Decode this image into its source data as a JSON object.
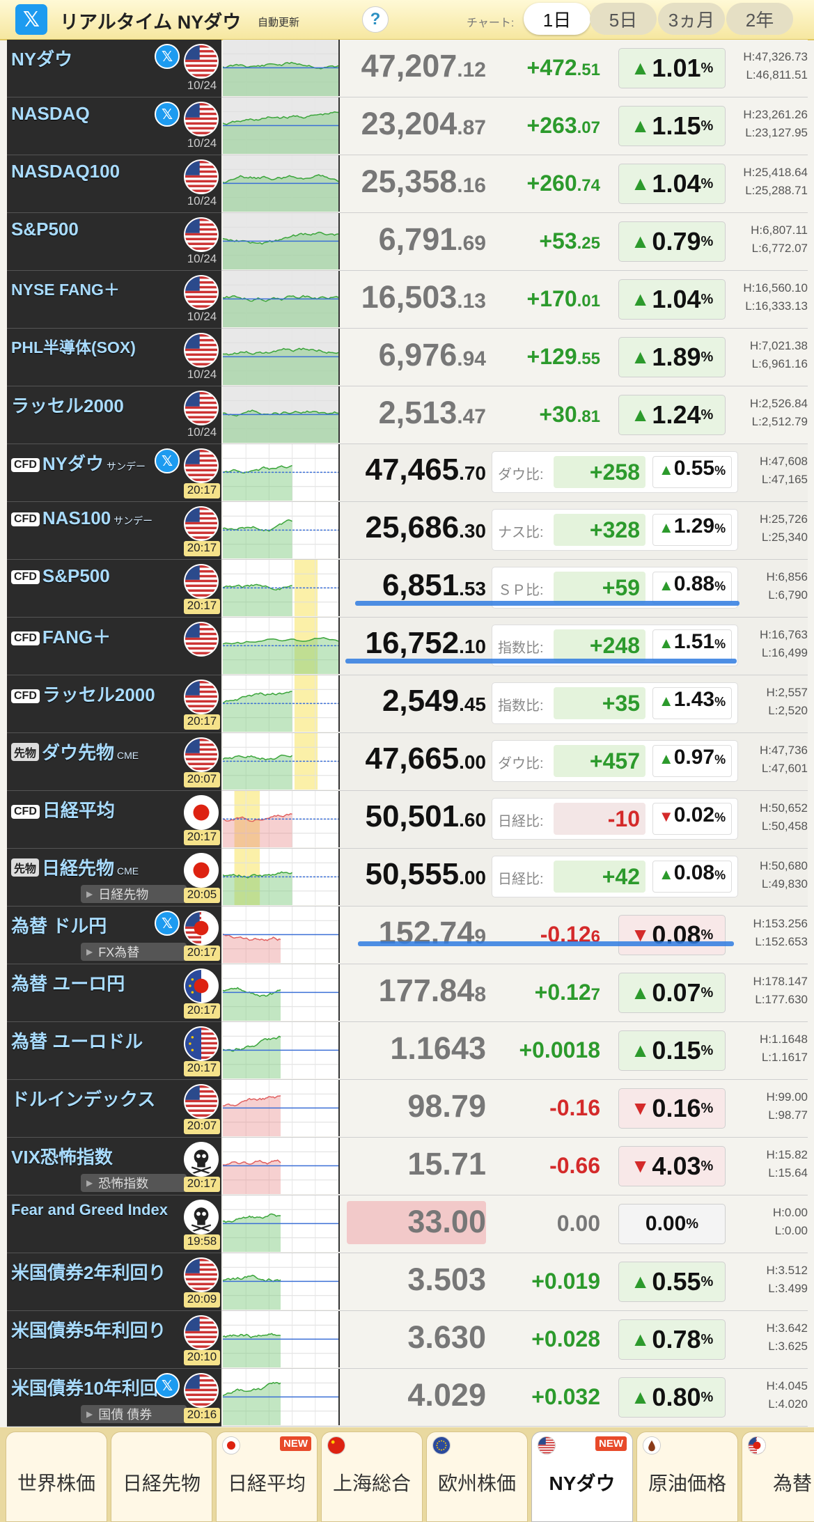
{
  "header": {
    "logo": "𝕏",
    "title": "リアルタイム NYダウ",
    "auto_update": "自動更新",
    "help": "?",
    "chart_label": "チャート:",
    "periods": [
      "1日",
      "5日",
      "3ヵ月",
      "2年"
    ],
    "active_period": "1日"
  },
  "rows": [
    {
      "name": "NYダウ",
      "x": true,
      "flag": "us",
      "time": "10/24",
      "price": "47,207",
      "dec": ".12",
      "chg": "+472",
      "chg_dec": ".51",
      "pct": "1.01",
      "dir": "up",
      "h": "H:47,326.73",
      "l": "L:46,811.51"
    },
    {
      "name": "NASDAQ",
      "x": true,
      "flag": "us",
      "time": "10/24",
      "price": "23,204",
      "dec": ".87",
      "chg": "+263",
      "chg_dec": ".07",
      "pct": "1.15",
      "dir": "up",
      "h": "H:23,261.26",
      "l": "L:23,127.95"
    },
    {
      "name": "NASDAQ100",
      "flag": "us",
      "time": "10/24",
      "price": "25,358",
      "dec": ".16",
      "chg": "+260",
      "chg_dec": ".74",
      "pct": "1.04",
      "dir": "up",
      "h": "H:25,418.64",
      "l": "L:25,288.71"
    },
    {
      "name": "S&P500",
      "flag": "us",
      "time": "10/24",
      "price": "6,791",
      "dec": ".69",
      "chg": "+53",
      "chg_dec": ".25",
      "pct": "0.79",
      "dir": "up",
      "h": "H:6,807.11",
      "l": "L:6,772.07"
    },
    {
      "name": "NYSE FANG＋",
      "flag": "us",
      "time": "10/24",
      "price": "16,503",
      "dec": ".13",
      "chg": "+170",
      "chg_dec": ".01",
      "pct": "1.04",
      "dir": "up",
      "h": "H:16,560.10",
      "l": "L:16,333.13"
    },
    {
      "name": "PHL半導体(SOX)",
      "flag": "us",
      "time": "10/24",
      "price": "6,976",
      "dec": ".94",
      "chg": "+129",
      "chg_dec": ".55",
      "pct": "1.89",
      "dir": "up",
      "h": "H:7,021.38",
      "l": "L:6,961.16"
    },
    {
      "name": "ラッセル2000",
      "flag": "us",
      "time": "10/24",
      "price": "2,513",
      "dec": ".47",
      "chg": "+30",
      "chg_dec": ".81",
      "pct": "1.24",
      "dir": "up",
      "h": "H:2,526.84",
      "l": "L:2,512.79"
    },
    {
      "badge": "CFD",
      "name": "NYダウ",
      "suffix": "サンデー",
      "x": true,
      "flag": "us",
      "time": "20:17",
      "live": true,
      "cfd": true,
      "price": "47,465",
      "dec": ".70",
      "cmp_label": "ダウ比:",
      "cmp": "+258",
      "pct": "0.55",
      "dir": "up",
      "h": "H:47,608",
      "l": "L:47,165"
    },
    {
      "badge": "CFD",
      "name": "NAS100",
      "suffix": "サンデー",
      "flag": "us",
      "time": "20:17",
      "live": true,
      "cfd": true,
      "price": "25,686",
      "dec": ".30",
      "cmp_label": "ナス比:",
      "cmp": "+328",
      "pct": "1.29",
      "dir": "up",
      "h": "H:25,726",
      "l": "L:25,340"
    },
    {
      "badge": "CFD",
      "name": "S&P500",
      "flag": "us",
      "time": "20:17",
      "live": true,
      "cfd": true,
      "price": "6,851",
      "dec": ".53",
      "cmp_label": "ＳＰ比:",
      "cmp": "+59",
      "pct": "0.88",
      "dir": "up",
      "h": "H:6,856",
      "l": "L:6,790"
    },
    {
      "badge": "CFD",
      "name": "FANG＋",
      "flag": "us",
      "time": "",
      "cfd": true,
      "price": "16,752",
      "dec": ".10",
      "cmp_label": "指数比:",
      "cmp": "+248",
      "pct": "1.51",
      "dir": "up",
      "h": "H:16,763",
      "l": "L:16,499"
    },
    {
      "badge": "CFD",
      "name": "ラッセル2000",
      "flag": "us",
      "time": "20:17",
      "live": true,
      "cfd": true,
      "price": "2,549",
      "dec": ".45",
      "cmp_label": "指数比:",
      "cmp": "+35",
      "pct": "1.43",
      "dir": "up",
      "h": "H:2,557",
      "l": "L:2,520"
    },
    {
      "badge": "先物",
      "name": "ダウ先物",
      "suffix": "CME",
      "flag": "us",
      "time": "20:07",
      "live": true,
      "cfd": true,
      "price": "47,665",
      "dec": ".00",
      "cmp_label": "ダウ比:",
      "cmp": "+457",
      "pct": "0.97",
      "dir": "up",
      "h": "H:47,736",
      "l": "L:47,601"
    },
    {
      "badge": "CFD",
      "name": "日経平均",
      "flag": "jp",
      "time": "20:17",
      "live": true,
      "cfd": true,
      "price": "50,501",
      "dec": ".60",
      "cmp_label": "日経比:",
      "cmp": "-10",
      "pct": "0.02",
      "dir": "down",
      "h": "H:50,652",
      "l": "L:50,458"
    },
    {
      "badge": "先物",
      "name": "日経先物",
      "suffix": "CME",
      "sub": "日経先物",
      "flag": "jp",
      "time": "20:05",
      "live": true,
      "cfd": true,
      "price": "50,555",
      "dec": ".00",
      "cmp_label": "日経比:",
      "cmp": "+42",
      "pct": "0.08",
      "dir": "up",
      "h": "H:50,680",
      "l": "L:49,830"
    },
    {
      "name": "為替 ドル円",
      "x": true,
      "sub": "FX為替",
      "flag": "usjp",
      "time": "20:17",
      "live": true,
      "price": "152.74",
      "dec": "9",
      "chg": "-0.12",
      "chg_dec": "6",
      "pct": "0.08",
      "dir": "down",
      "h": "H:153.256",
      "l": "L:152.653"
    },
    {
      "name": "為替 ユーロ円",
      "flag": "eujp",
      "time": "20:17",
      "live": true,
      "price": "177.84",
      "dec": "8",
      "chg": "+0.12",
      "chg_dec": "7",
      "pct": "0.07",
      "dir": "up",
      "h": "H:178.147",
      "l": "L:177.630"
    },
    {
      "name": "為替 ユーロドル",
      "flag": "euus",
      "time": "20:17",
      "live": true,
      "price": "1.1643",
      "dec": "",
      "chg": "+0.0018",
      "chg_dec": "",
      "pct": "0.15",
      "dir": "up",
      "h": "H:1.1648",
      "l": "L:1.1617"
    },
    {
      "name": "ドルインデックス",
      "flag": "us",
      "time": "20:07",
      "live": true,
      "price": "98.79",
      "dec": "",
      "chg": "-0.16",
      "chg_dec": "",
      "pct": "0.16",
      "dir": "down",
      "h": "H:99.00",
      "l": "L:98.77"
    },
    {
      "name": "VIX恐怖指数",
      "sub": "恐怖指数",
      "flag": "skull",
      "time": "20:17",
      "live": true,
      "price": "15.71",
      "dec": "",
      "chg": "-0.66",
      "chg_dec": "",
      "pct": "4.03",
      "dir": "down",
      "h": "H:15.82",
      "l": "L:15.64"
    },
    {
      "name": "Fear and Greed Index",
      "flag": "skull",
      "time": "19:58",
      "live": true,
      "fg": true,
      "price": "33.00",
      "dec": "",
      "chg": "0.00",
      "chg_dec": "",
      "pct": "0.00",
      "dir": "zero",
      "h": "H:0.00",
      "l": "L:0.00"
    },
    {
      "name": "米国債券2年利回り",
      "flag": "us",
      "time": "20:09",
      "live": true,
      "price": "3.503",
      "dec": "",
      "chg": "+0.019",
      "chg_dec": "",
      "pct": "0.55",
      "dir": "up",
      "h": "H:3.512",
      "l": "L:3.499"
    },
    {
      "name": "米国債券5年利回り",
      "flag": "us",
      "time": "20:10",
      "live": true,
      "price": "3.630",
      "dec": "",
      "chg": "+0.028",
      "chg_dec": "",
      "pct": "0.78",
      "dir": "up",
      "h": "H:3.642",
      "l": "L:3.625"
    },
    {
      "name": "米国債券10年利回",
      "x": true,
      "sub": "国債 債券",
      "flag": "us",
      "time": "20:16",
      "live": true,
      "price": "4.029",
      "dec": "",
      "chg": "+0.032",
      "chg_dec": "",
      "pct": "0.80",
      "dir": "up",
      "h": "H:4.045",
      "l": "L:4.020"
    }
  ],
  "bottom_nav": [
    {
      "label": "世界株価"
    },
    {
      "label": "日経先物"
    },
    {
      "label": "日経平均",
      "flag": "jp",
      "new": "NEW"
    },
    {
      "label": "上海総合",
      "flag": "cn"
    },
    {
      "label": "欧州株価",
      "flag": "eu"
    },
    {
      "label": "NYダウ",
      "flag": "us",
      "new": "NEW",
      "active": true
    },
    {
      "label": "原油価格",
      "flag": "oil"
    },
    {
      "label": "為替",
      "flag": "usjp"
    }
  ]
}
